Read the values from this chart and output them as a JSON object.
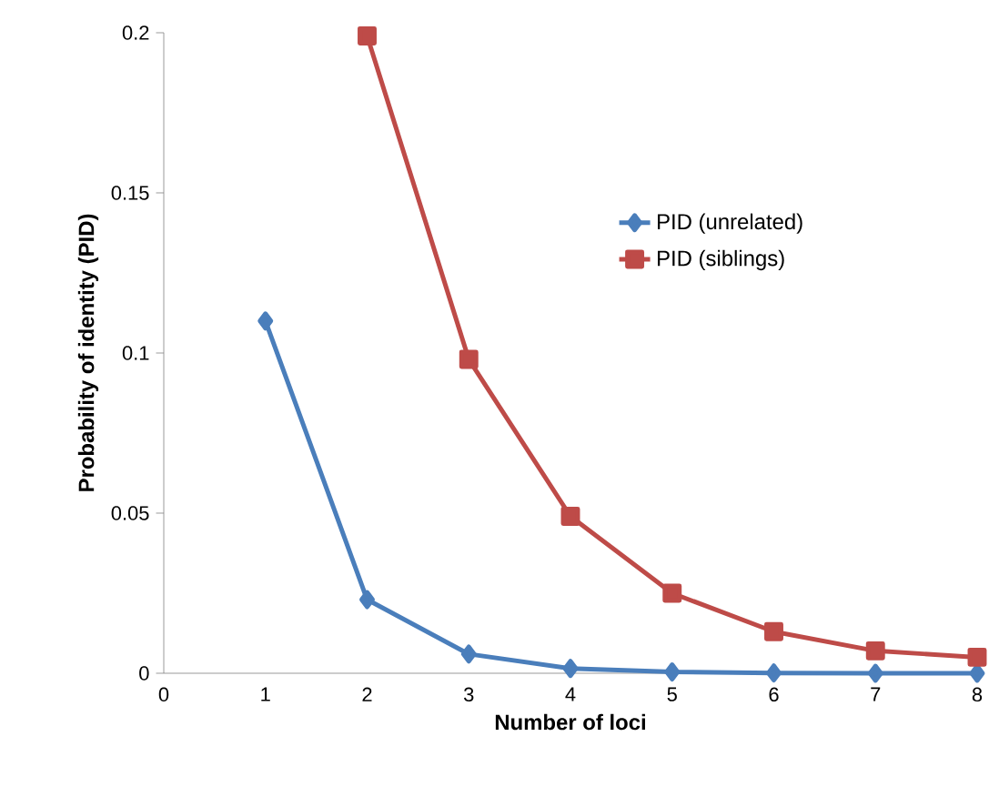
{
  "chart_data": {
    "type": "line",
    "xlabel": "Number of loci",
    "ylabel": "Probability of identity (PID)",
    "xlim": [
      0,
      8
    ],
    "xticks": [
      0,
      1,
      2,
      3,
      4,
      5,
      6,
      7,
      8
    ],
    "ylim": [
      0,
      0.2
    ],
    "yticks": [
      0,
      0.05,
      0.1,
      0.15,
      0.2
    ],
    "legend": "right",
    "grid": false,
    "line_style": "solid",
    "series": [
      {
        "name": "PID (unrelated)",
        "color": "#4a7ebb",
        "marker": "diamond",
        "x": [
          1,
          2,
          3,
          4,
          5,
          6,
          7,
          8
        ],
        "values": [
          0.11,
          0.023,
          0.006,
          0.0015,
          0.0004,
          0.0001,
          0.0,
          0.0
        ]
      },
      {
        "name": "PID (siblings)",
        "color": "#be4b48",
        "marker": "square",
        "x": [
          2,
          3,
          4,
          5,
          6,
          7,
          8
        ],
        "values": [
          0.199,
          0.098,
          0.049,
          0.025,
          0.013,
          0.007,
          0.005
        ]
      }
    ]
  }
}
